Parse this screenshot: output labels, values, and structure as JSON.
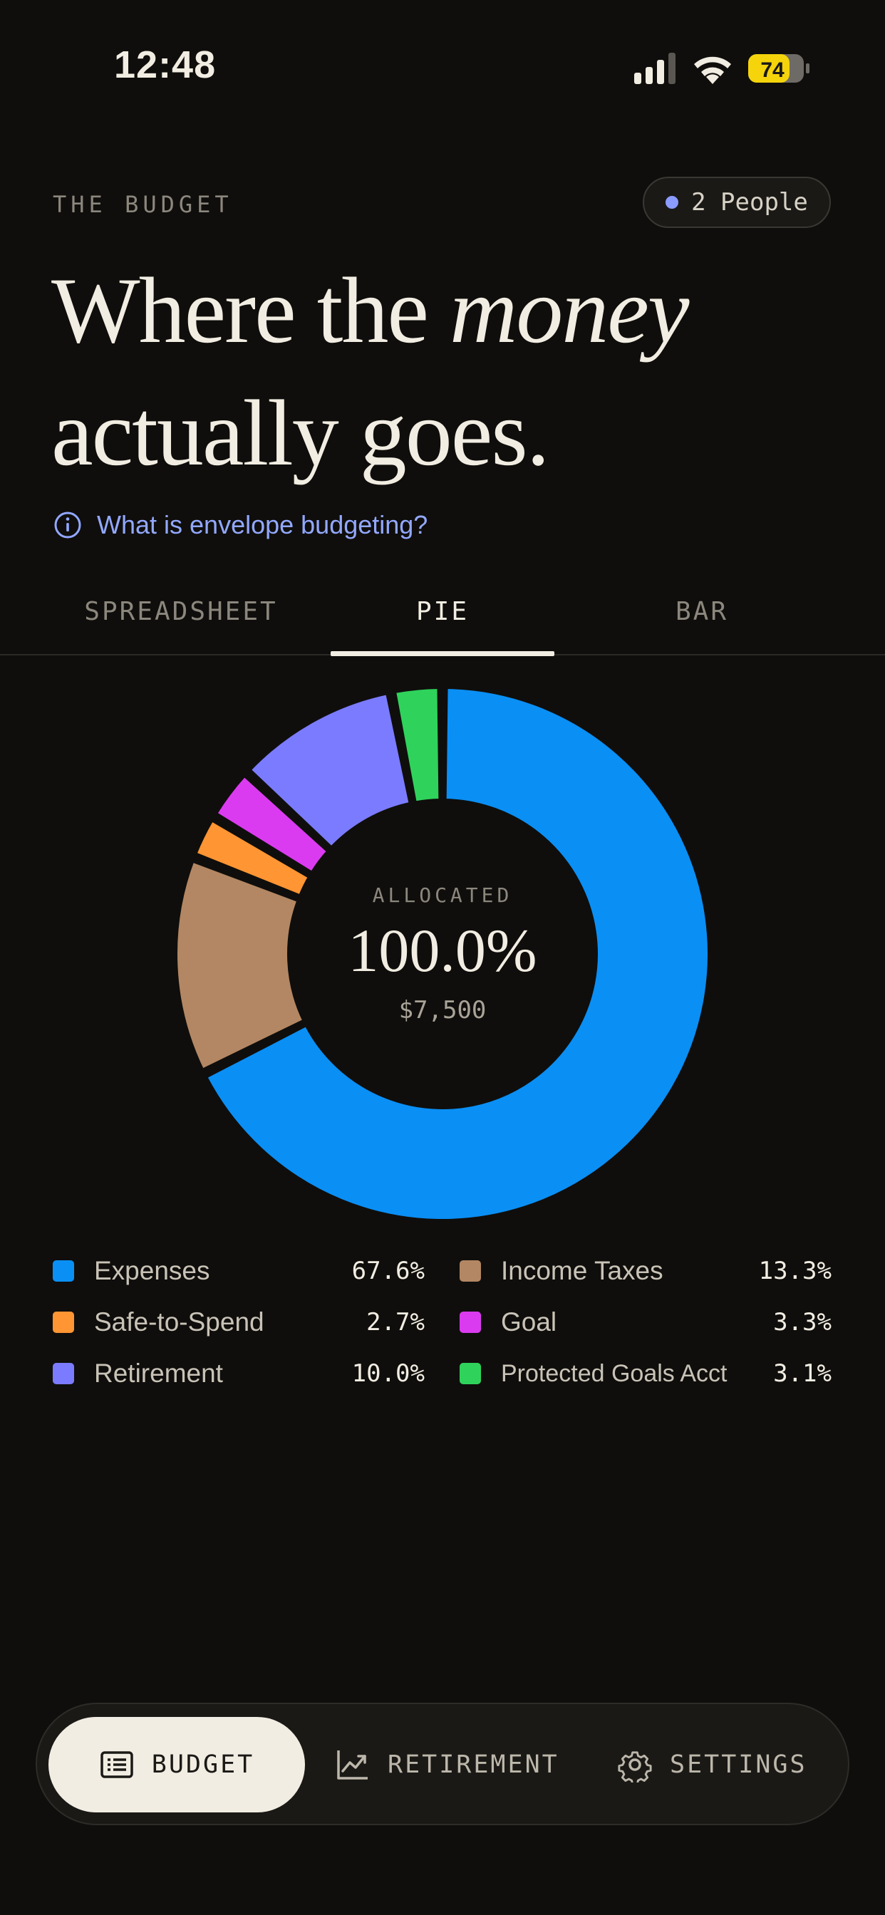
{
  "status_bar": {
    "time": "12:48",
    "battery": "74"
  },
  "header": {
    "eyebrow": "THE BUDGET",
    "people_pill": "2 People",
    "headline_pre": "Where the ",
    "headline_em": "money",
    "headline_post": "actually goes.",
    "help_link": "What is envelope budgeting?"
  },
  "tabs": [
    {
      "label": "SPREADSHEET",
      "active": false
    },
    {
      "label": "PIE",
      "active": true
    },
    {
      "label": "BAR",
      "active": false
    }
  ],
  "chart_data": {
    "type": "pie",
    "center": {
      "label": "ALLOCATED",
      "value": "100.0%",
      "amount": "$7,500"
    },
    "series": [
      {
        "name": "Expenses",
        "value": 67.6,
        "label": "67.6%",
        "color": "#0a8ff5"
      },
      {
        "name": "Income Taxes",
        "value": 13.3,
        "label": "13.3%",
        "color": "#b38763"
      },
      {
        "name": "Safe-to-Spend",
        "value": 2.7,
        "label": "2.7%",
        "color": "#ff9533"
      },
      {
        "name": "Goal",
        "value": 3.3,
        "label": "3.3%",
        "color": "#db3bf0"
      },
      {
        "name": "Retirement",
        "value": 10.0,
        "label": "10.0%",
        "color": "#7b7bff"
      },
      {
        "name": "Protected Goals Acct",
        "value": 3.1,
        "label": "3.1%",
        "color": "#2fd35b"
      }
    ]
  },
  "bottom_nav": {
    "budget": "BUDGET",
    "retirement": "RETIREMENT",
    "settings": "SETTINGS"
  }
}
